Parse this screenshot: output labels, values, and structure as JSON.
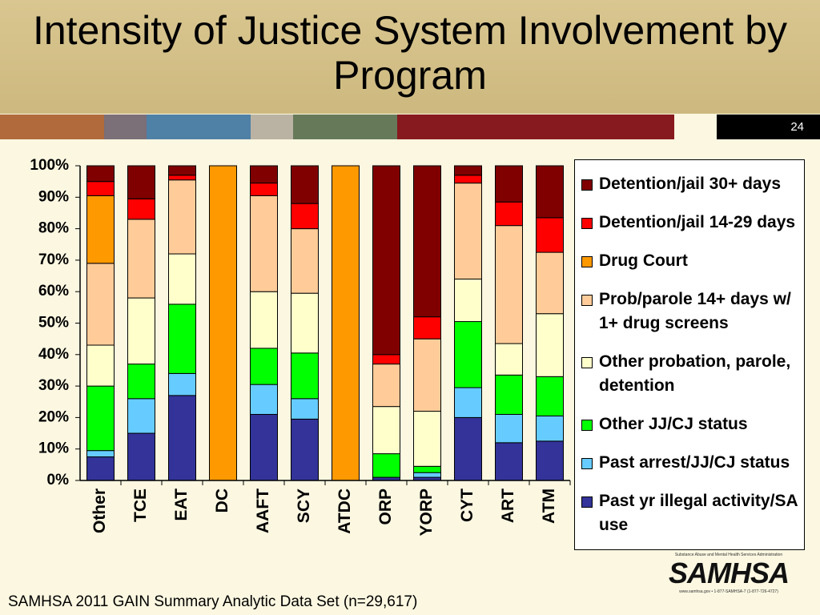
{
  "chart_data": {
    "type": "stacked_bar",
    "title": "Intensity of Justice System Involvement by Program",
    "categories": [
      "Other",
      "TCE",
      "EAT",
      "DC",
      "AAFT",
      "SCY",
      "ATDC",
      "ORP",
      "YORP",
      "CYT",
      "ART",
      "ATM"
    ],
    "series": [
      {
        "name": "Past yr illegal activity/SA use",
        "color": "#333399",
        "values": [
          7.5,
          15,
          27,
          0,
          21,
          19.5,
          0,
          1,
          1,
          20,
          12,
          12.5
        ]
      },
      {
        "name": "Past arrest/JJ/CJ status",
        "color": "#66ccff",
        "values": [
          2,
          11,
          7,
          0,
          9.5,
          6.5,
          0,
          0,
          1.5,
          9.5,
          9,
          8
        ]
      },
      {
        "name": "Other JJ/CJ status",
        "color": "#00ff00",
        "values": [
          20.5,
          11,
          22,
          0,
          11.5,
          14.5,
          0,
          7.5,
          2,
          21,
          12.5,
          12.5
        ]
      },
      {
        "name": "Other probation, parole, detention",
        "color": "#ffffcc",
        "values": [
          13,
          21,
          16,
          0,
          18,
          19,
          0,
          15,
          17.5,
          13.5,
          10,
          20
        ]
      },
      {
        "name": "Prob/parole 14+ days w/ 1+ drug screens",
        "color": "#ffcc99",
        "values": [
          26,
          25,
          23.5,
          0,
          30.5,
          20.5,
          0,
          13.5,
          23,
          30.5,
          37.5,
          19.5
        ]
      },
      {
        "name": "Drug Court",
        "color": "#ff9900",
        "values": [
          21.5,
          0,
          0,
          100,
          0,
          0,
          100,
          0,
          0,
          0,
          0,
          0
        ]
      },
      {
        "name": "Detention/jail 14-29 days",
        "color": "#ff0000",
        "values": [
          4.5,
          6.5,
          1.5,
          0,
          4,
          8,
          0,
          3,
          7,
          2.5,
          7.5,
          11
        ]
      },
      {
        "name": "Detention/jail 30+ days",
        "color": "#800000",
        "values": [
          5,
          10.5,
          3,
          0,
          5.5,
          12,
          0,
          60,
          48,
          3,
          11.5,
          16.5
        ]
      }
    ],
    "ylim": [
      0,
      100
    ],
    "yticks": [
      {
        "value": 0,
        "label": "0%"
      },
      {
        "value": 10,
        "label": "10%"
      },
      {
        "value": 20,
        "label": "20%"
      },
      {
        "value": 30,
        "label": "30%"
      },
      {
        "value": 40,
        "label": "40%"
      },
      {
        "value": 50,
        "label": "50%"
      },
      {
        "value": 60,
        "label": "60%"
      },
      {
        "value": 70,
        "label": "70%"
      },
      {
        "value": 80,
        "label": "80%"
      },
      {
        "value": 90,
        "label": "90%"
      },
      {
        "value": 100,
        "label": "100%"
      }
    ],
    "legend": "right"
  },
  "page_number": "24",
  "footer": "SAMHSA 2011 GAIN Summary Analytic Data Set (n=29,617)",
  "logo": {
    "tagline": "Substance Abuse and Mental Health Services Administration",
    "name": "SAMHSA",
    "contact": "www.samhsa.gov • 1-877-SAMHSA-7 (1-877-726-4727)"
  }
}
